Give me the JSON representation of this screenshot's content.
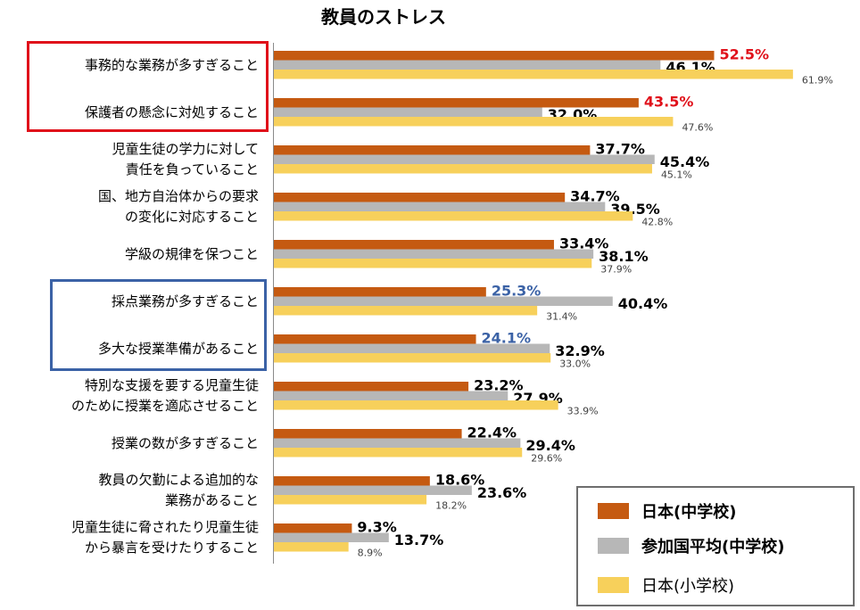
{
  "chart_data": {
    "type": "bar",
    "orientation": "horizontal",
    "title": "教員のストレス",
    "categories": [
      "事務的な業務が多すぎること",
      "保護者の懸念に対処すること",
      "児童生徒の学力に対して\n責任を負っていること",
      "国、地方自治体からの要求\nの変化に対応すること",
      "学級の規律を保つこと",
      "採点業務が多すぎること",
      "多大な授業準備があること",
      "特別な支援を要する児童生徒\nのために授業を適応させること",
      "授業の数が多すぎること",
      "教員の欠勤による追加的な\n業務があること",
      "児童生徒に脅されたり児童生徒\nから暴言を受けたりすること"
    ],
    "series": [
      {
        "name": "日本(中学校)",
        "color": "#c55a11",
        "values": [
          52.5,
          43.5,
          37.7,
          34.7,
          33.4,
          25.3,
          24.1,
          23.2,
          22.4,
          18.6,
          9.3
        ],
        "labels": [
          "52.5%",
          "43.5%",
          "37.7%",
          "34.7%",
          "33.4%",
          "25.3%",
          "24.1%",
          "23.2%",
          "22.4%",
          "18.6%",
          "9.3%"
        ],
        "label_colors": [
          "#e0101a",
          "#e0101a",
          "#000000",
          "#000000",
          "#000000",
          "#3b62a6",
          "#3b62a6",
          "#000000",
          "#000000",
          "#000000",
          "#000000"
        ]
      },
      {
        "name": "参加国平均(中学校)",
        "color": "#b7b7b7",
        "values": [
          46.1,
          32.0,
          45.4,
          39.5,
          38.1,
          40.4,
          32.9,
          27.9,
          29.4,
          23.6,
          13.7
        ],
        "labels": [
          "46.1%",
          "32.0%",
          "45.4%",
          "39.5%",
          "38.1%",
          "40.4%",
          "32.9%",
          "27.9%",
          "29.4%",
          "23.6%",
          "13.7%"
        ]
      },
      {
        "name": "日本(小学校)",
        "color": "#f7d05b",
        "values": [
          61.9,
          47.6,
          45.1,
          42.8,
          37.9,
          31.4,
          33.0,
          33.9,
          29.6,
          18.2,
          8.9
        ],
        "labels": [
          "61.9%",
          "47.6%",
          "45.1%",
          "42.8%",
          "37.9%",
          "31.4%",
          "33.0%",
          "33.9%",
          "29.6%",
          "18.2%",
          "8.9%"
        ]
      }
    ],
    "xlim": [
      0,
      100
    ],
    "grid": false,
    "legend_position": "bottom-right",
    "highlight_red": [
      0,
      1
    ],
    "highlight_blue": [
      5,
      6
    ]
  }
}
